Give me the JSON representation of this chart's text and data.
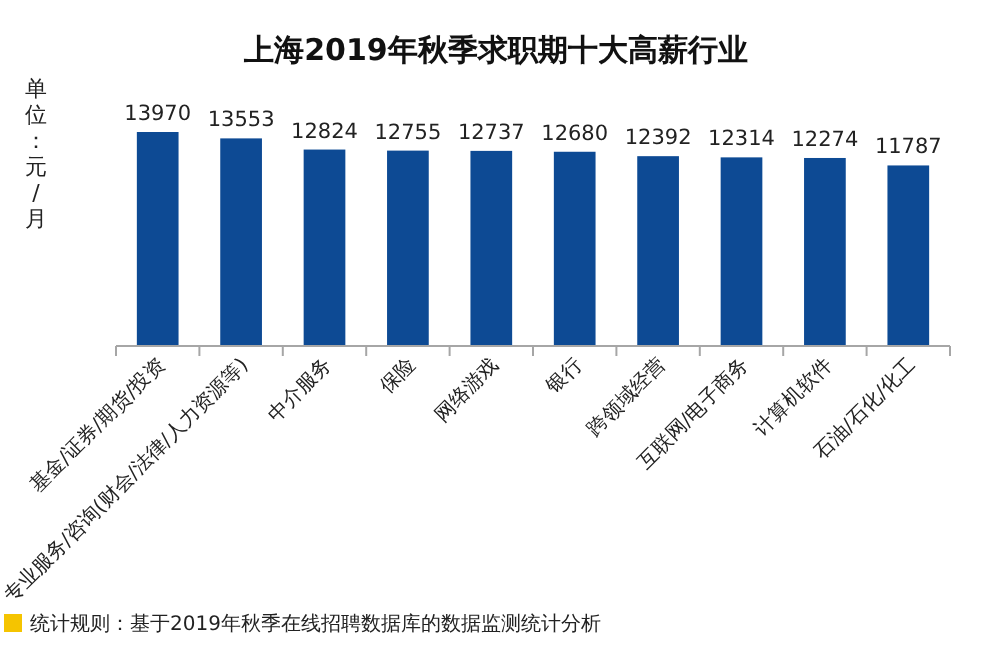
{
  "chart_data": {
    "type": "bar",
    "title": "上海2019年秋季求职期十大高薪行业",
    "ylabel": "单位：元/月",
    "categories": [
      "基金/证券/期货/投资",
      "专业服务/咨询(财会/法律/人力资源等)",
      "中介服务",
      "保险",
      "网络游戏",
      "银行",
      "跨领域经营",
      "互联网/电子商务",
      "计算机软件",
      "石油/石化/化工"
    ],
    "values": [
      13970,
      13553,
      12824,
      12755,
      12737,
      12680,
      12392,
      12314,
      12274,
      11787
    ],
    "color": "#0d4a94",
    "data_labels": true,
    "annotations": [
      "统计规则：基于2019年秋季在线招聘数据库的数据监测统计分析"
    ]
  }
}
